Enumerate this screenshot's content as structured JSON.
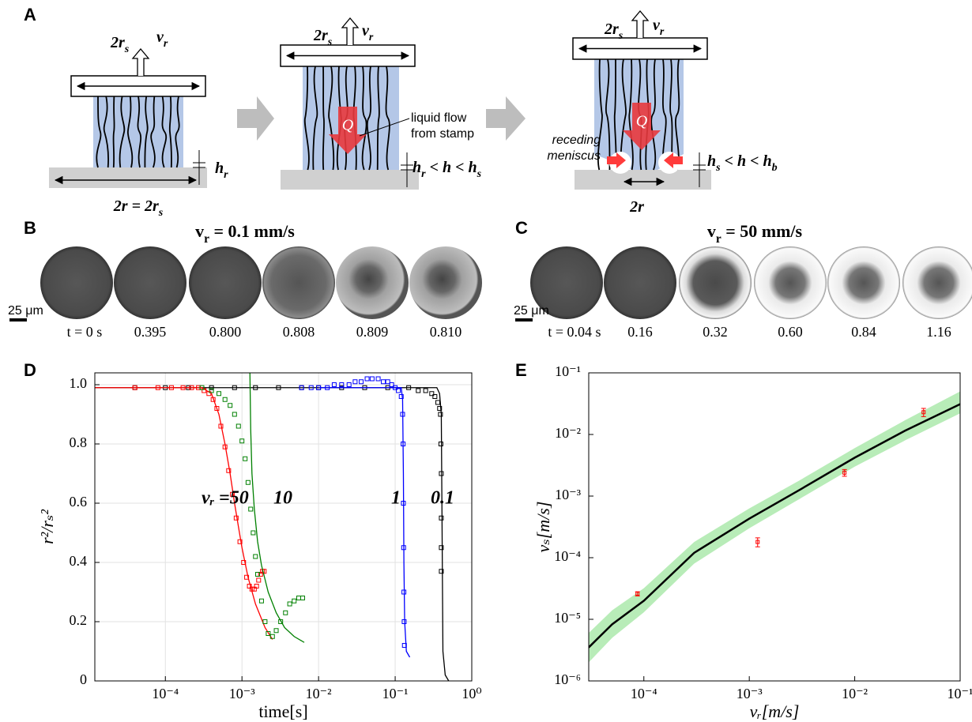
{
  "panel_a": {
    "label": "A",
    "stages": [
      {
        "width": [
          {
            "t": "2r"
          },
          {
            "sub": "s"
          }
        ],
        "speed": [
          {
            "t": "v"
          },
          {
            "sub": "r"
          }
        ],
        "gap": [
          {
            "t": "h"
          },
          {
            "sub": "r"
          }
        ],
        "contact": [
          {
            "t": "2r = 2r"
          },
          {
            "sub": "s"
          }
        ]
      },
      {
        "width": [
          {
            "t": "2r"
          },
          {
            "sub": "s"
          }
        ],
        "speed": [
          {
            "t": "v"
          },
          {
            "sub": "r"
          }
        ],
        "flow": "Q",
        "note": [
          "liquid flow",
          "from stamp"
        ],
        "gap": [
          {
            "t": "h"
          },
          {
            "sub": "r"
          },
          {
            "t": " < h < h"
          },
          {
            "sub": "s"
          }
        ]
      },
      {
        "width": [
          {
            "t": "2r"
          },
          {
            "sub": "s"
          }
        ],
        "speed": [
          {
            "t": "v"
          },
          {
            "sub": "r"
          }
        ],
        "flow": "Q",
        "note": [
          "receding",
          "meniscus"
        ],
        "gap": [
          {
            "t": "h"
          },
          {
            "sub": "s"
          },
          {
            "t": " < h < h"
          },
          {
            "sub": "b"
          }
        ],
        "contact": [
          {
            "t": "2r"
          }
        ]
      }
    ]
  },
  "panel_b": {
    "label": "B",
    "title": [
      {
        "t": "v"
      },
      {
        "sub": "r"
      },
      {
        "t": " = 0.1 mm/s"
      }
    ],
    "scale": "25 μm",
    "times": [
      "t = 0 s",
      "0.395",
      "0.800",
      "0.808",
      "0.809",
      "0.810"
    ]
  },
  "panel_c": {
    "label": "C",
    "title": [
      {
        "t": "v"
      },
      {
        "sub": "r"
      },
      {
        "t": " = 50 mm/s"
      }
    ],
    "scale": "25 μm",
    "times": [
      "t = 0.04 s",
      "0.16",
      "0.32",
      "0.60",
      "0.84",
      "1.16"
    ]
  },
  "chart_data": [
    {
      "type": "scatter",
      "label": "D",
      "xlabel": "time[s]",
      "ylabel": "r²/rₛ²",
      "xscale": "log",
      "grid": true,
      "xlim": [
        1.2e-05,
        1
      ],
      "ylim": [
        0,
        1.04
      ],
      "xticks": [
        {
          "value": 0.0001,
          "label": "10⁻⁴"
        },
        {
          "value": 0.001,
          "label": "10⁻³"
        },
        {
          "value": 0.01,
          "label": "10⁻²"
        },
        {
          "value": 0.1,
          "label": "10⁻¹"
        },
        {
          "value": 1,
          "label": "10⁰"
        }
      ],
      "yticks": [
        0,
        0.2,
        0.4,
        0.6,
        0.8,
        {
          "value": 1,
          "label": "1.0"
        }
      ],
      "annotations": [
        "vᵣ =50",
        "10",
        "1",
        "0.1"
      ],
      "series": [
        {
          "style": "line",
          "color": "#000000",
          "x": [
            1.2e-05,
            0.35,
            0.38,
            0.4,
            0.41,
            0.42,
            0.45,
            0.5
          ],
          "values": [
            0.99,
            0.99,
            0.97,
            0.9,
            0.5,
            0.1,
            0.02,
            0
          ]
        },
        {
          "style": "markers",
          "color": "#000000",
          "x": [
            4e-05,
            0.0001,
            0.0002,
            0.0004,
            0.0008,
            0.0015,
            0.003,
            0.006,
            0.01,
            0.02,
            0.04,
            0.08,
            0.15,
            0.2,
            0.25,
            0.3,
            0.33,
            0.36,
            0.38,
            0.39,
            0.395,
            0.4,
            0.4,
            0.4,
            0.4
          ],
          "values": [
            0.99,
            0.99,
            0.99,
            0.99,
            0.99,
            0.99,
            0.99,
            0.99,
            0.99,
            0.99,
            0.99,
            0.99,
            0.99,
            0.98,
            0.98,
            0.97,
            0.96,
            0.94,
            0.92,
            0.9,
            0.8,
            0.7,
            0.55,
            0.45,
            0.37
          ]
        },
        {
          "style": "line",
          "color": "#ff0000",
          "x": [
            1.2e-05,
            0.0003,
            0.0004,
            0.0005,
            0.0006,
            0.0007,
            0.0008,
            0.0009,
            0.001,
            0.0012,
            0.0015,
            0.002,
            0.0025
          ],
          "values": [
            0.99,
            0.99,
            0.97,
            0.9,
            0.8,
            0.7,
            0.6,
            0.52,
            0.45,
            0.35,
            0.26,
            0.18,
            0.14
          ]
        },
        {
          "style": "markers",
          "color": "#ff0000",
          "x": [
            4e-05,
            8e-05,
            0.00012,
            0.00017,
            0.00022,
            0.00027,
            0.00032,
            0.00037,
            0.00042,
            0.00047,
            0.00053,
            0.0006,
            0.00067,
            0.00075,
            0.00084,
            0.00094,
            0.00105,
            0.00115,
            0.00125,
            0.00135,
            0.00145,
            0.00155,
            0.00165,
            0.00175,
            0.00185,
            0.00195
          ],
          "values": [
            0.99,
            0.99,
            0.99,
            0.99,
            0.99,
            0.99,
            0.98,
            0.97,
            0.95,
            0.92,
            0.86,
            0.79,
            0.71,
            0.63,
            0.55,
            0.47,
            0.4,
            0.35,
            0.32,
            0.31,
            0.31,
            0.32,
            0.34,
            0.36,
            0.37,
            0.37
          ]
        },
        {
          "style": "line",
          "color": "#008000",
          "x": [
            0.00127,
            0.0013,
            0.00135,
            0.00145,
            0.0016,
            0.0018,
            0.0022,
            0.0028,
            0.0036,
            0.0048,
            0.0065
          ],
          "values": [
            1.04,
            0.85,
            0.7,
            0.58,
            0.47,
            0.39,
            0.3,
            0.23,
            0.18,
            0.15,
            0.13
          ]
        },
        {
          "style": "markers",
          "color": "#008000",
          "x": [
            0.0003,
            0.0004,
            0.0005,
            0.0006,
            0.0007,
            0.0008,
            0.0009,
            0.001,
            0.0011,
            0.0012,
            0.0013,
            0.0014,
            0.0015,
            0.0016,
            0.0018,
            0.002,
            0.0022,
            0.0025,
            0.0028,
            0.0032,
            0.0037,
            0.0042,
            0.0048,
            0.0055,
            0.0062
          ],
          "values": [
            0.99,
            0.98,
            0.97,
            0.95,
            0.93,
            0.9,
            0.86,
            0.81,
            0.75,
            0.67,
            0.58,
            0.5,
            0.42,
            0.36,
            0.27,
            0.2,
            0.16,
            0.15,
            0.17,
            0.2,
            0.23,
            0.26,
            0.27,
            0.28,
            0.28
          ]
        },
        {
          "style": "line",
          "color": "#0000ff",
          "x": [
            0.01,
            0.1,
            0.12,
            0.125,
            0.128,
            0.13,
            0.133,
            0.14,
            0.155
          ],
          "values": [
            0.99,
            0.99,
            0.99,
            0.95,
            0.7,
            0.4,
            0.2,
            0.1,
            0.08
          ]
        },
        {
          "style": "markers",
          "color": "#0000ff",
          "x": [
            0.006,
            0.008,
            0.01,
            0.013,
            0.016,
            0.02,
            0.025,
            0.03,
            0.036,
            0.043,
            0.05,
            0.06,
            0.07,
            0.08,
            0.09,
            0.1,
            0.11,
            0.12,
            0.125,
            0.127,
            0.128,
            0.129,
            0.13,
            0.131,
            0.132
          ],
          "values": [
            0.99,
            0.99,
            0.99,
            0.99,
            1,
            1,
            1,
            1.01,
            1.01,
            1.02,
            1.02,
            1.02,
            1.01,
            1.01,
            1,
            0.99,
            0.98,
            0.96,
            0.9,
            0.8,
            0.6,
            0.45,
            0.3,
            0.2,
            0.12
          ]
        }
      ]
    },
    {
      "type": "line",
      "label": "E",
      "xlabel": "vᵣ[m/s]",
      "ylabel": "vₛ[m/s]",
      "xscale": "log",
      "yscale": "log",
      "grid": false,
      "xlim": [
        3e-05,
        0.1
      ],
      "ylim": [
        1e-06,
        0.1
      ],
      "xticks": [
        {
          "value": 0.0001,
          "label": "10⁻⁴"
        },
        {
          "value": 0.001,
          "label": "10⁻³"
        },
        {
          "value": 0.01,
          "label": "10⁻²"
        },
        {
          "value": 0.1,
          "label": "10⁻¹"
        }
      ],
      "yticks": [
        {
          "value": 1e-06,
          "label": "10⁻⁶"
        },
        {
          "value": 1e-05,
          "label": "10⁻⁵"
        },
        {
          "value": 0.0001,
          "label": "10⁻⁴"
        },
        {
          "value": 0.001,
          "label": "10⁻³"
        },
        {
          "value": 0.01,
          "label": "10⁻²"
        },
        {
          "value": 0.1,
          "label": "10⁻¹"
        }
      ],
      "series": [
        {
          "style": "band",
          "color": "#b8ecb8",
          "x": [
            3e-05,
            5e-05,
            0.0001,
            0.0003,
            0.001,
            0.003,
            0.01,
            0.03,
            0.1
          ],
          "lower": [
            2e-06,
            5e-06,
            1.3e-05,
            8e-05,
            0.0003,
            0.0009,
            0.003,
            0.008,
            0.022
          ],
          "upper": [
            6e-06,
            1.4e-05,
            3.2e-05,
            0.00018,
            0.00063,
            0.0018,
            0.006,
            0.017,
            0.05
          ]
        },
        {
          "style": "line",
          "color": "#000000",
          "x": [
            3e-05,
            5e-05,
            0.0001,
            0.0003,
            0.001,
            0.003,
            0.01,
            0.03,
            0.1
          ],
          "values": [
            3.5e-06,
            8.3e-06,
            2e-05,
            0.00012,
            0.00043,
            0.00126,
            0.0042,
            0.0115,
            0.031
          ]
        },
        {
          "style": "errorbar",
          "color": "#ff0000",
          "x": [
            8.7e-05,
            0.0012,
            0.008,
            0.045
          ],
          "values": [
            2.6e-05,
            0.00018,
            0.0024,
            0.023
          ],
          "err": [
            2e-06,
            3e-05,
            0.0003,
            0.0035
          ]
        }
      ]
    }
  ]
}
